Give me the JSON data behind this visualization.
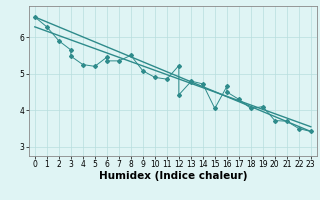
{
  "title": "",
  "xlabel": "Humidex (Indice chaleur)",
  "ylabel": "",
  "xlim": [
    -0.5,
    23.5
  ],
  "ylim": [
    2.75,
    6.85
  ],
  "yticks": [
    3,
    4,
    5,
    6
  ],
  "xticks": [
    0,
    1,
    2,
    3,
    4,
    5,
    6,
    7,
    8,
    9,
    10,
    11,
    12,
    13,
    14,
    15,
    16,
    17,
    18,
    19,
    20,
    21,
    22,
    23
  ],
  "scatter_x": [
    0,
    1,
    2,
    3,
    3,
    4,
    5,
    6,
    6,
    7,
    8,
    9,
    10,
    11,
    12,
    12,
    13,
    13,
    14,
    15,
    16,
    16,
    17,
    18,
    19,
    20,
    21,
    22,
    23
  ],
  "scatter_y": [
    6.55,
    6.28,
    5.9,
    5.65,
    5.48,
    5.25,
    5.2,
    5.45,
    5.35,
    5.35,
    5.5,
    5.08,
    4.9,
    4.85,
    5.22,
    4.42,
    4.78,
    4.8,
    4.72,
    4.05,
    4.65,
    4.5,
    4.3,
    4.05,
    4.1,
    3.72,
    3.7,
    3.5,
    3.42
  ],
  "line1_x": [
    0,
    23
  ],
  "line1_y": [
    6.55,
    3.42
  ],
  "line2_x": [
    0,
    23
  ],
  "line2_y": [
    6.28,
    3.55
  ],
  "color": "#2e8b8b",
  "bg_color": "#dff4f4",
  "grid_color": "#b8dede",
  "tick_fontsize": 5.5,
  "label_fontsize": 7.5
}
